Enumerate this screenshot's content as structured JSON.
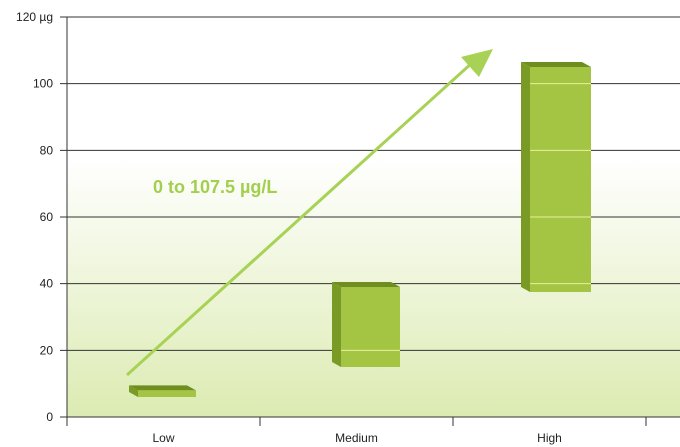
{
  "chart_data": {
    "type": "bar",
    "categories": [
      "Low",
      "Medium",
      "High"
    ],
    "series": [
      {
        "low": [
          6,
          15,
          37.5
        ],
        "high": [
          8,
          39,
          105
        ]
      }
    ],
    "y_unit": "µg",
    "ylim": [
      0,
      120
    ],
    "yticks": [
      0,
      20,
      40,
      60,
      80,
      100,
      120
    ],
    "ytick_labels": [
      "0",
      "20",
      "40",
      "60",
      "80",
      "100",
      "120 µg"
    ],
    "grid": true,
    "annotation": "0 to 107.5 µg/L",
    "colors": {
      "bar_front": "#a4c444",
      "bar_side": "#7a9a26",
      "bar_top": "#6f8e1f",
      "segment_line": "#e6f19a",
      "arrow": "#a8d255",
      "annotation_text": "#a2cf4e",
      "gradient_top": "#ffffff",
      "gradient_bottom": "#dcebb2",
      "grid": "#333333"
    }
  }
}
